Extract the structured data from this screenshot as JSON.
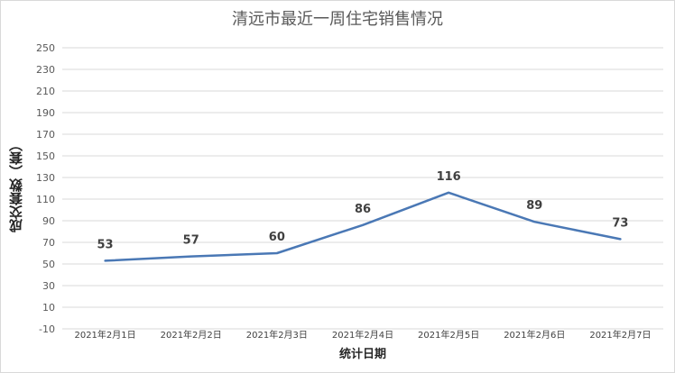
{
  "chart_data": {
    "type": "line",
    "title": "清远市最近一周住宅销售情况",
    "xlabel": "统计日期",
    "ylabel": "成交套数（套）",
    "categories": [
      "2021年2月1日",
      "2021年2月2日",
      "2021年2月3日",
      "2021年2月4日",
      "2021年2月5日",
      "2021年2月6日",
      "2021年2月7日"
    ],
    "values": [
      53,
      57,
      60,
      86,
      116,
      89,
      73
    ],
    "ylim": [
      -10,
      250
    ],
    "yticks": [
      -10,
      10,
      30,
      50,
      70,
      90,
      110,
      130,
      150,
      170,
      190,
      210,
      230,
      250
    ],
    "grid": true,
    "legend": "none",
    "line_color": "#4a78b5",
    "grid_color": "#d9d9d9"
  }
}
